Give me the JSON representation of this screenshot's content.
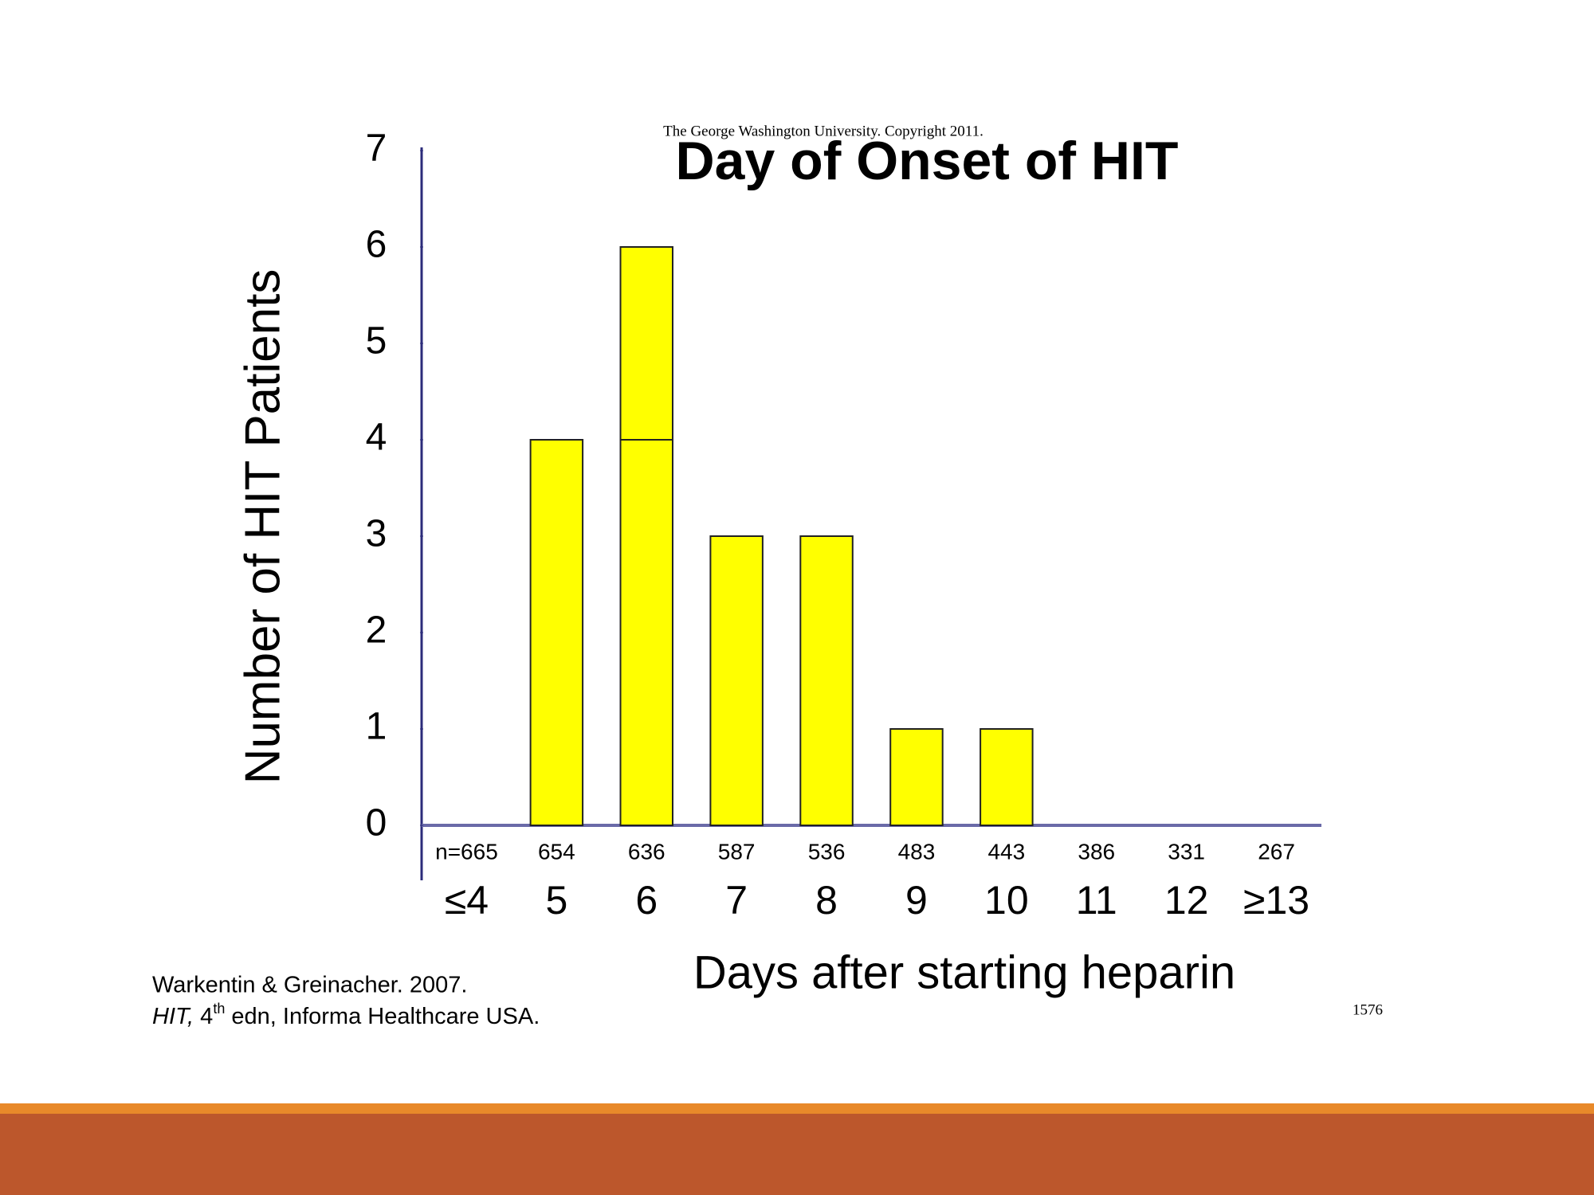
{
  "chart_data": {
    "type": "bar",
    "title": "Day of Onset of HIT",
    "subtitle": "The George Washington University. Copyright 2011.",
    "y_label": "Number of HIT Patients",
    "x_label": "Days after starting heparin",
    "categories": [
      "≤4",
      "5",
      "6",
      "7",
      "8",
      "9",
      "10",
      "11",
      "12",
      "≥13"
    ],
    "n_labels": [
      "n=665",
      "654",
      "636",
      "587",
      "536",
      "483",
      "443",
      "386",
      "331",
      "267"
    ],
    "series": [
      {
        "color": "#ffff00",
        "values": [
          0,
          4,
          4,
          3,
          3,
          1,
          1,
          0,
          0,
          0
        ]
      },
      {
        "color": "#ffff00",
        "values": [
          0,
          0,
          2,
          0,
          0,
          0,
          0,
          0,
          0,
          0
        ]
      }
    ],
    "stacked": true,
    "ylim": [
      0,
      7
    ],
    "yticks": [
      0,
      1,
      2,
      3,
      4,
      5,
      6,
      7
    ]
  },
  "citation": {
    "line1": "Warkentin & Greinacher. 2007.",
    "line2_italic": "HIT,",
    "line2_edition": "4",
    "line2_sup": "th",
    "line2_rest": "edn, Informa Healthcare USA."
  },
  "page_number": "1576"
}
